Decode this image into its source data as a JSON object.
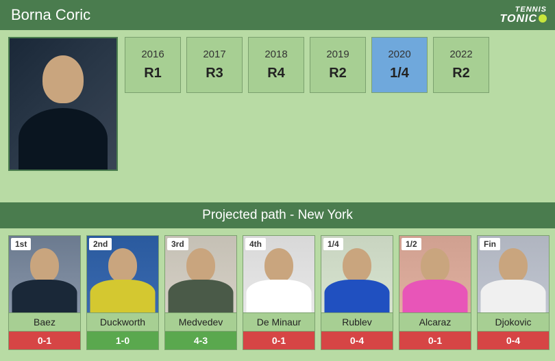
{
  "header": {
    "player_name": "Borna Coric",
    "logo_top": "TENNIS",
    "logo_bottom": "TONIC"
  },
  "history": [
    {
      "year": "2016",
      "result": "R1",
      "highlighted": false
    },
    {
      "year": "2017",
      "result": "R3",
      "highlighted": false
    },
    {
      "year": "2018",
      "result": "R4",
      "highlighted": false
    },
    {
      "year": "2019",
      "result": "R2",
      "highlighted": false
    },
    {
      "year": "2020",
      "result": "1/4",
      "highlighted": true
    },
    {
      "year": "2022",
      "result": "R2",
      "highlighted": false
    }
  ],
  "projected": {
    "title": "Projected path - New York",
    "opponents": [
      {
        "round": "1st",
        "name": "Baez",
        "h2h": "0-1",
        "h2h_color": "#d64545",
        "bg": "linear-gradient(180deg,#6b7a8f 0%,#8895a8 100%)",
        "shirt": "#1a2838"
      },
      {
        "round": "2nd",
        "name": "Duckworth",
        "h2h": "1-0",
        "h2h_color": "#5aa84e",
        "bg": "linear-gradient(180deg,#2a5a9e 0%,#3a6ab0 100%)",
        "shirt": "#d4c830"
      },
      {
        "round": "3rd",
        "name": "Medvedev",
        "h2h": "4-3",
        "h2h_color": "#5aa84e",
        "bg": "linear-gradient(180deg,#c5c0b5 0%,#d5d0c5 100%)",
        "shirt": "#4a5a48"
      },
      {
        "round": "4th",
        "name": "De Minaur",
        "h2h": "0-1",
        "h2h_color": "#d64545",
        "bg": "linear-gradient(180deg,#d8d8d8 0%,#e8e8e8 100%)",
        "shirt": "#ffffff"
      },
      {
        "round": "1/4",
        "name": "Rublev",
        "h2h": "0-4",
        "h2h_color": "#d64545",
        "bg": "linear-gradient(180deg,#c8d4c0 0%,#d8e4d0 100%)",
        "shirt": "#2050c0"
      },
      {
        "round": "1/2",
        "name": "Alcaraz",
        "h2h": "0-1",
        "h2h_color": "#d64545",
        "bg": "linear-gradient(180deg,#d0a090 0%,#e0b0a0 100%)",
        "shirt": "#e855b8"
      },
      {
        "round": "Fin",
        "name": "Djokovic",
        "h2h": "0-4",
        "h2h_color": "#d64545",
        "bg": "linear-gradient(180deg,#b0b5c0 0%,#c0c5d0 100%)",
        "shirt": "#f0f0f0"
      }
    ]
  }
}
